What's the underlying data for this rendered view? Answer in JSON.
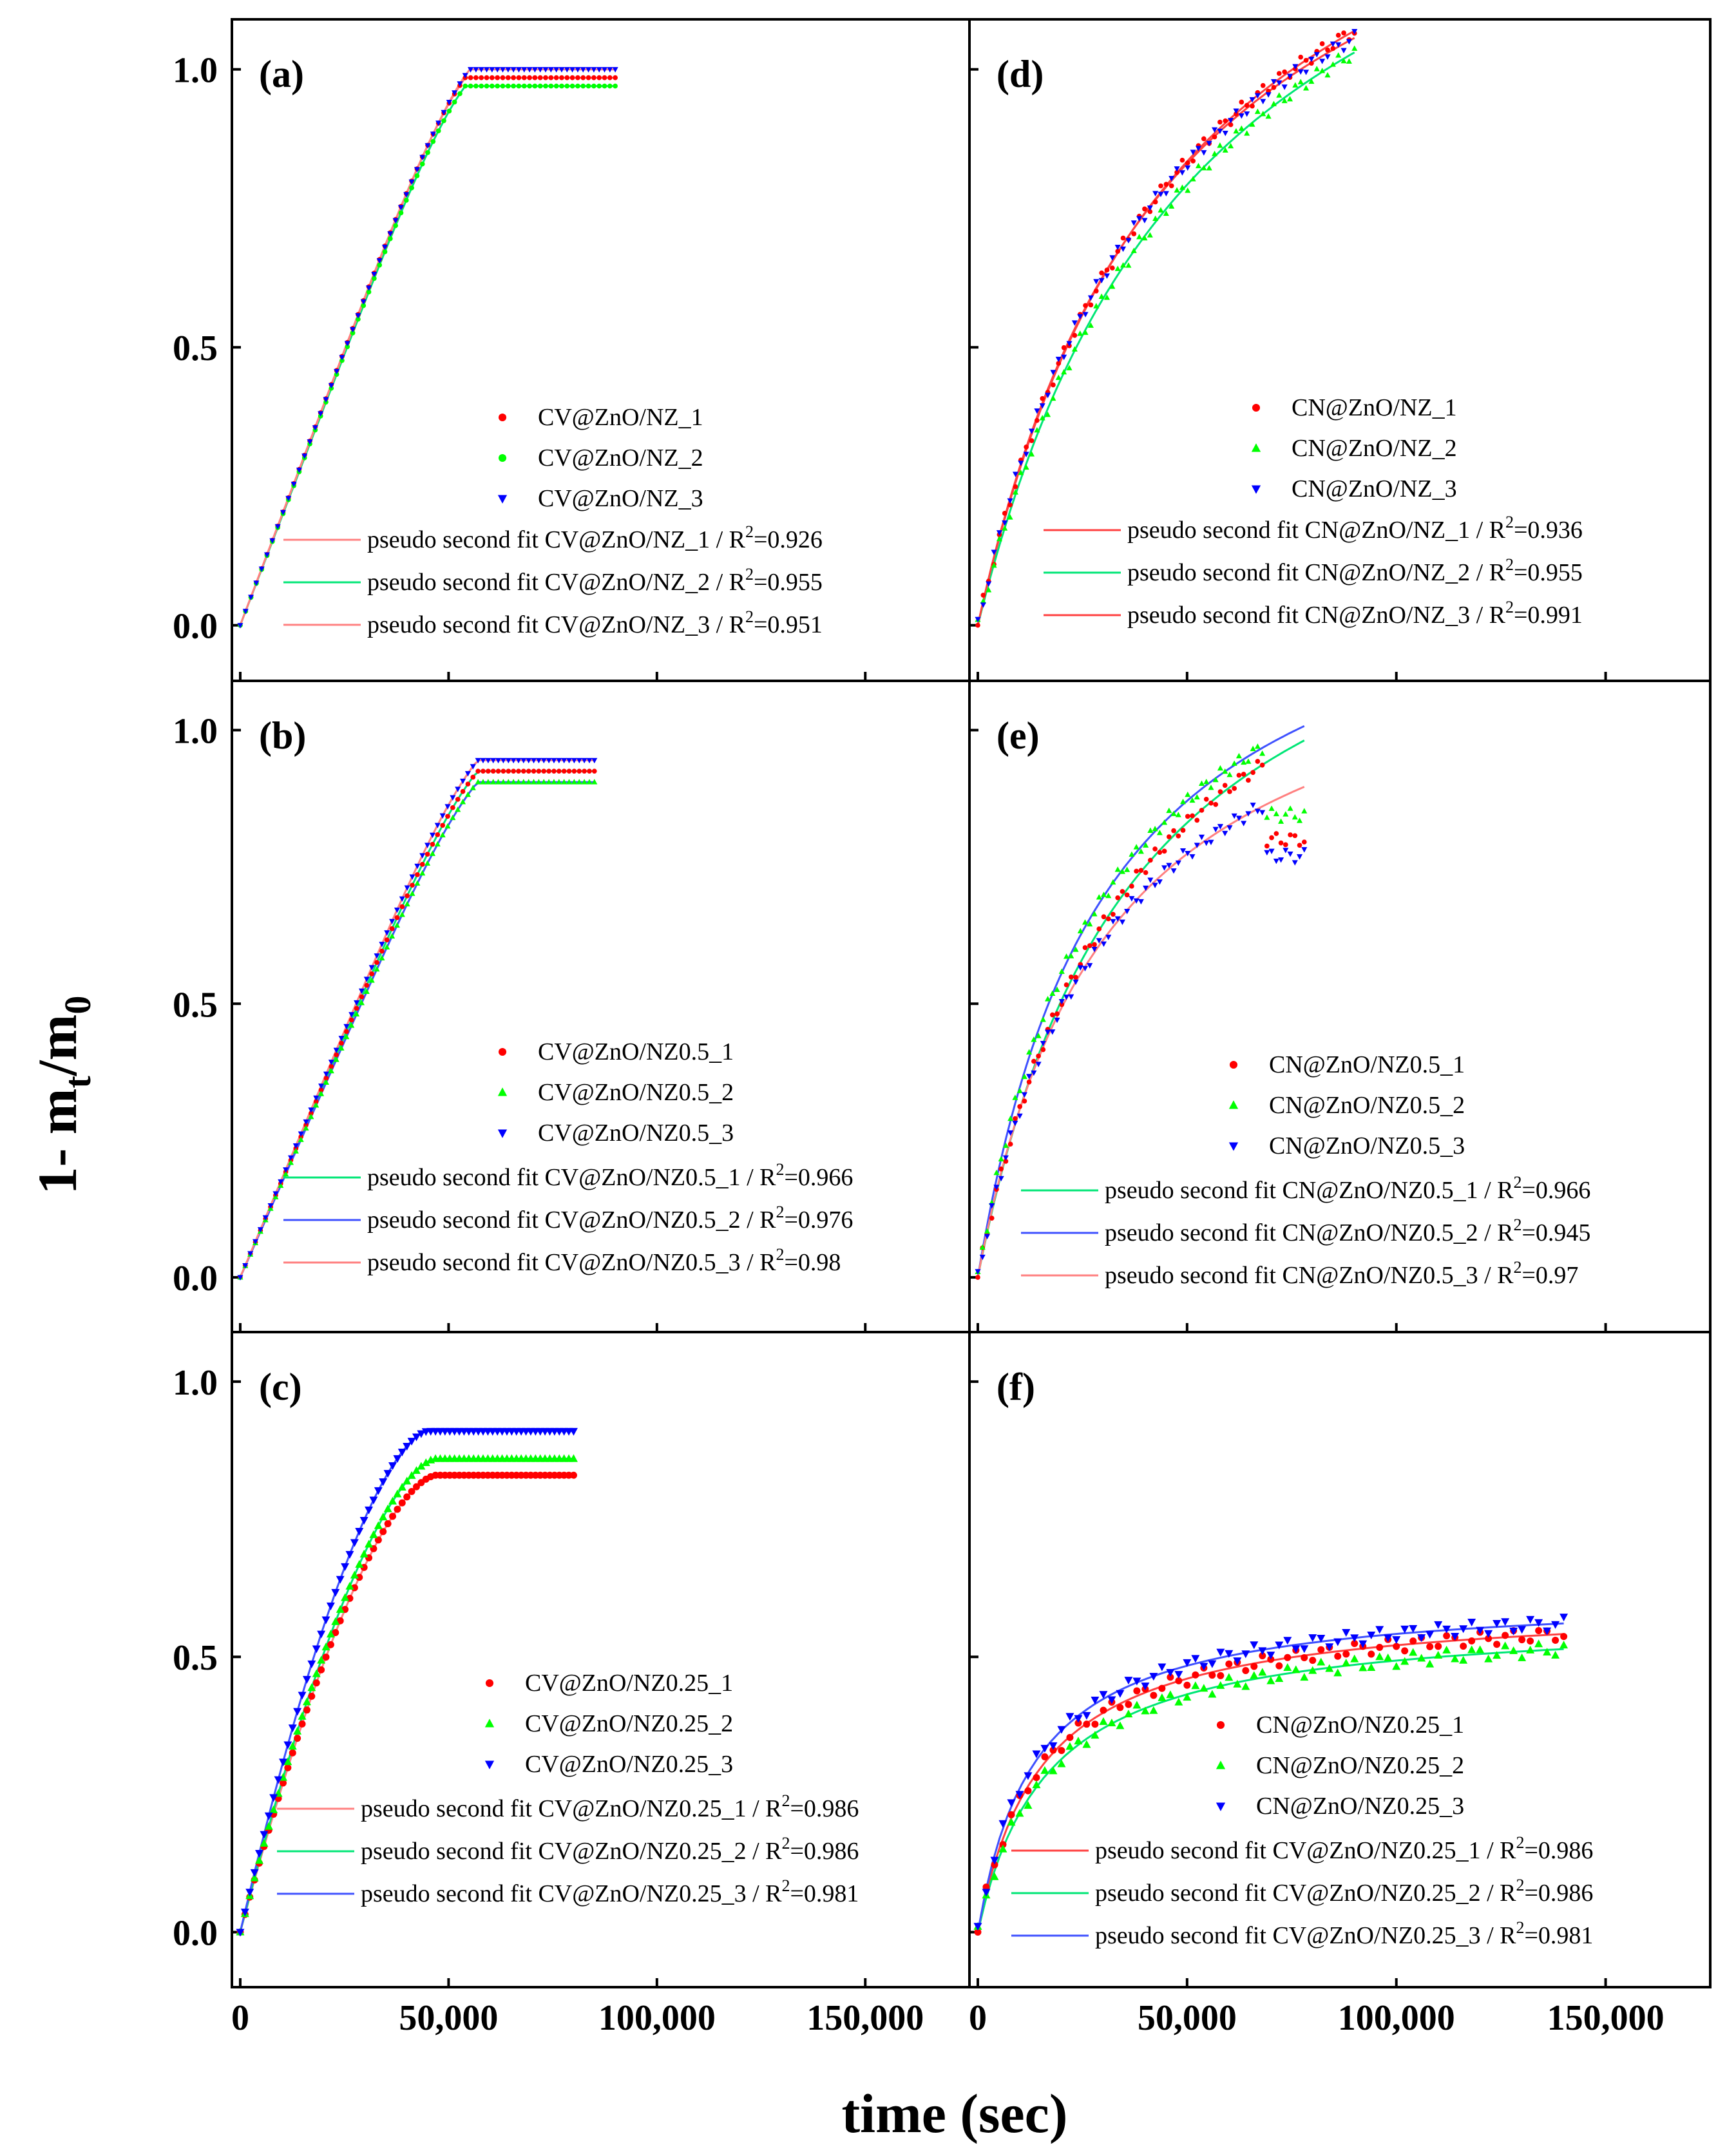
{
  "figure": {
    "ylabel_prefix": "1- m",
    "ylabel_sub1": "t",
    "ylabel_slash": "/m",
    "ylabel_sub2": "0",
    "xlabel": "time (sec)"
  },
  "colors": {
    "series_1": "#ff0000",
    "series_2": "#00ff00",
    "series_3": "#0000ff",
    "fit_red": "#ff8080",
    "fit_green": "#00e676",
    "fit_blue": "#3f51ff"
  },
  "chart_data": [
    {
      "type": "scatter",
      "panel": "(a)",
      "xlim": [
        -2000,
        175000
      ],
      "ylim": [
        -0.1,
        1.09
      ],
      "xticks": [
        0,
        50000,
        100000,
        150000
      ],
      "yticks": [
        0.0,
        0.5,
        1.0
      ],
      "xtick_labels": [
        "0",
        "50,000",
        "100,000",
        "150,000"
      ],
      "ytick_labels": [
        "0.0",
        "0.5",
        "1.0"
      ],
      "series": [
        {
          "name": "CV@ZnO/NZ_1",
          "color": "#ff0000",
          "marker": "circle",
          "qe": 0.985,
          "t_end": 54000,
          "t_max": 90000,
          "curve": "linear"
        },
        {
          "name": "CV@ZnO/NZ_2",
          "color": "#00ff00",
          "marker": "circle",
          "qe": 0.97,
          "t_end": 54000,
          "t_max": 90000,
          "curve": "linear"
        },
        {
          "name": "CV@ZnO/NZ_3",
          "color": "#0000ff",
          "marker": "triangle-down",
          "qe": 1.0,
          "t_end": 55000,
          "t_max": 90000,
          "curve": "linear"
        }
      ],
      "fits": [
        {
          "label": "pseudo second fit CV@ZnO/NZ_1 / R",
          "r2": "0.926",
          "color": "#ff8080"
        },
        {
          "label": "pseudo second fit CV@ZnO/NZ_2 / R",
          "r2": "0.955",
          "color": "#00e676"
        },
        {
          "label": "pseudo second fit CV@ZnO/NZ_3 / R",
          "r2": "0.951",
          "color": "#ff8080"
        }
      ]
    },
    {
      "type": "scatter",
      "panel": "(b)",
      "xlim": [
        -2000,
        175000
      ],
      "ylim": [
        -0.1,
        1.09
      ],
      "xticks": [
        0,
        50000,
        100000,
        150000
      ],
      "yticks": [
        0.0,
        0.5,
        1.0
      ],
      "xtick_labels": [
        "0",
        "50,000",
        "100,000",
        "150,000"
      ],
      "ytick_labels": [
        "0.0",
        "0.5",
        "1.0"
      ],
      "series": [
        {
          "name": "CV@ZnO/NZ0.5_1",
          "color": "#ff0000",
          "marker": "circle",
          "qe": 0.925,
          "t_end": 57000,
          "t_max": 85000,
          "curve": "linear"
        },
        {
          "name": "CV@ZnO/NZ0.5_2",
          "color": "#00ff00",
          "marker": "triangle-up",
          "qe": 0.905,
          "t_end": 57000,
          "t_max": 85000,
          "curve": "linear"
        },
        {
          "name": "CV@ZnO/NZ0.5_3",
          "color": "#0000ff",
          "marker": "triangle-down",
          "qe": 0.945,
          "t_end": 57000,
          "t_max": 85000,
          "curve": "linear"
        }
      ],
      "fits": [
        {
          "label": "pseudo second fit CV@ZnO/NZ0.5_1 / R",
          "r2": "0.966",
          "color": "#00e676"
        },
        {
          "label": "pseudo second fit CV@ZnO/NZ0.5_2 / R",
          "r2": "0.976",
          "color": "#3f51ff"
        },
        {
          "label": "pseudo second fit CV@ZnO/NZ0.5_3 / R",
          "r2": "0.98",
          "color": "#ff8080"
        }
      ]
    },
    {
      "type": "scatter",
      "panel": "(c)",
      "xlim": [
        -2000,
        175000
      ],
      "ylim": [
        -0.1,
        1.09
      ],
      "xticks": [
        0,
        50000,
        100000,
        150000
      ],
      "yticks": [
        0.0,
        0.5,
        1.0
      ],
      "xtick_labels": [
        "0",
        "50,000",
        "100,000",
        "150,000"
      ],
      "ytick_labels": [
        "0.0",
        "0.5",
        "1.0"
      ],
      "series": [
        {
          "name": "CV@ZnO/NZ0.25_1",
          "color": "#ff0000",
          "marker": "circle",
          "qe": 0.83,
          "t_end": 47000,
          "t_max": 80000,
          "curve": "curved"
        },
        {
          "name": "CV@ZnO/NZ0.25_2",
          "color": "#00ff00",
          "marker": "triangle-up",
          "qe": 0.86,
          "t_end": 47000,
          "t_max": 80000,
          "curve": "curved"
        },
        {
          "name": "CV@ZnO/NZ0.25_3",
          "color": "#0000ff",
          "marker": "triangle-down",
          "qe": 0.91,
          "t_end": 45000,
          "t_max": 80000,
          "curve": "curved"
        }
      ],
      "fits": [
        {
          "label": "pseudo second fit CV@ZnO/NZ0.25_1 / R",
          "r2": "0.986",
          "color": "#ff8080"
        },
        {
          "label": "pseudo second fit CV@ZnO/NZ0.25_2 / R",
          "r2": "0.986",
          "color": "#00e676"
        },
        {
          "label": "pseudo second fit CV@ZnO/NZ0.25_3 / R",
          "r2": "0.981",
          "color": "#3f51ff"
        }
      ]
    },
    {
      "type": "scatter",
      "panel": "(d)",
      "xlim": [
        -2000,
        175000
      ],
      "ylim": [
        -0.1,
        1.09
      ],
      "xticks": [
        0,
        50000,
        100000,
        150000
      ],
      "yticks": [
        0.0,
        0.5,
        1.0
      ],
      "xtick_labels": [
        "0",
        "50,000",
        "100,000",
        "150,000"
      ],
      "ytick_labels": [
        "0.0",
        "0.5",
        "1.0"
      ],
      "series": [
        {
          "name": "CN@ZnO/NZ_1",
          "color": "#ff0000",
          "marker": "circle",
          "qe": 1.65,
          "k": 1.24e-05,
          "t_max": 90000
        },
        {
          "name": "CN@ZnO/NZ_2",
          "color": "#00ff00",
          "marker": "triangle-up",
          "qe": 1.65,
          "k": 1.12e-05,
          "t_max": 90000
        },
        {
          "name": "CN@ZnO/NZ_3",
          "color": "#0000ff",
          "marker": "triangle-down",
          "qe": 1.6,
          "k": 1.35e-05,
          "t_max": 90000
        }
      ],
      "fits": [
        {
          "label": "pseudo second fit CN@ZnO/NZ_1 / R",
          "r2": "0.936",
          "color": "#ff4040"
        },
        {
          "label": "pseudo second fit CN@ZnO/NZ_2 / R",
          "r2": "0.955",
          "color": "#00e676"
        },
        {
          "label": "pseudo second fit CN@ZnO/NZ_3 / R",
          "r2": "0.991",
          "color": "#ff4040"
        }
      ]
    },
    {
      "type": "scatter",
      "panel": "(e)",
      "xlim": [
        -2000,
        175000
      ],
      "ylim": [
        -0.1,
        1.09
      ],
      "xticks": [
        0,
        50000,
        100000,
        150000
      ],
      "yticks": [
        0.0,
        0.5,
        1.0
      ],
      "xtick_labels": [
        "0",
        "50,000",
        "100,000",
        "150,000"
      ],
      "ytick_labels": [
        "0.0",
        "0.5",
        "1.0"
      ],
      "series": [
        {
          "name": "CN@ZnO/NZ0.5_1",
          "color": "#ff0000",
          "marker": "circle",
          "qe": 1.45,
          "k": 1.85e-05,
          "t_max": 78000,
          "plateau": 0.8,
          "t_plateau": 68000
        },
        {
          "name": "CN@ZnO/NZ0.5_2",
          "color": "#00ff00",
          "marker": "triangle-up",
          "qe": 1.4,
          "k": 2.35e-05,
          "t_max": 78000,
          "plateau": 0.845,
          "t_plateau": 68000
        },
        {
          "name": "CN@ZnO/NZ0.5_3",
          "color": "#0000ff",
          "marker": "triangle-down",
          "qe": 1.25,
          "k": 2.6e-05,
          "t_max": 78000,
          "plateau": 0.77,
          "t_plateau": 68000
        }
      ],
      "fits": [
        {
          "label": "pseudo second fit CN@ZnO/NZ0.5_1 / R",
          "r2": "0.966",
          "color": "#00e676"
        },
        {
          "label": "pseudo second fit CN@ZnO/NZ0.5_2 / R",
          "r2": "0.945",
          "color": "#3f51ff"
        },
        {
          "label": "pseudo second fit CN@ZnO/NZ0.5_3 / R",
          "r2": "0.97",
          "color": "#ff8080"
        }
      ]
    },
    {
      "type": "scatter",
      "panel": "(f)",
      "xlim": [
        -2000,
        175000
      ],
      "ylim": [
        -0.1,
        1.09
      ],
      "xticks": [
        0,
        50000,
        100000,
        150000
      ],
      "yticks": [
        0.0,
        0.5,
        1.0
      ],
      "xtick_labels": [
        "0",
        "50,000",
        "100,000",
        "150,000"
      ],
      "ytick_labels": [
        "0.0",
        "0.5",
        "1.0"
      ],
      "series": [
        {
          "name": "CN@ZnO/NZ0.25_1",
          "color": "#ff0000",
          "marker": "circle",
          "qe": 0.6,
          "k": 0.00011,
          "t_max": 140000
        },
        {
          "name": "CN@ZnO/NZ0.25_2",
          "color": "#00ff00",
          "marker": "triangle-up",
          "qe": 0.575,
          "k": 0.000105,
          "t_max": 140000
        },
        {
          "name": "CN@ZnO/NZ0.25_3",
          "color": "#0000ff",
          "marker": "triangle-down",
          "qe": 0.615,
          "k": 0.00012,
          "t_max": 140000
        }
      ],
      "fits": [
        {
          "label": "pseudo second fit CV@ZnO/NZ0.25_1 / R",
          "r2": "0.986",
          "color": "#ff4040"
        },
        {
          "label": "pseudo second fit CV@ZnO/NZ0.25_2 / R",
          "r2": "0.986",
          "color": "#00e676"
        },
        {
          "label": "pseudo second fit CV@ZnO/NZ0.25_3 / R",
          "r2": "0.981",
          "color": "#3f51ff"
        }
      ]
    }
  ]
}
